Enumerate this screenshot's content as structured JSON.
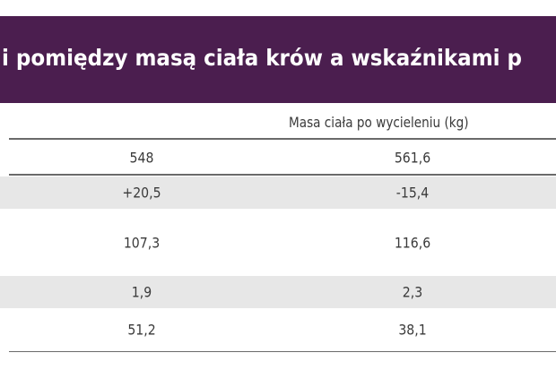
{
  "header": {
    "title": "i pomiędzy masą ciała krów a wskaźnikami p"
  },
  "table": {
    "column_header": "Masa ciała po wycieleniu (kg)",
    "rows": [
      [
        "548",
        "561,6"
      ],
      [
        "+20,5",
        "-15,4"
      ],
      [
        "107,3",
        "116,6"
      ],
      [
        "1,9",
        "2,3"
      ],
      [
        "51,2",
        "38,1"
      ]
    ]
  }
}
